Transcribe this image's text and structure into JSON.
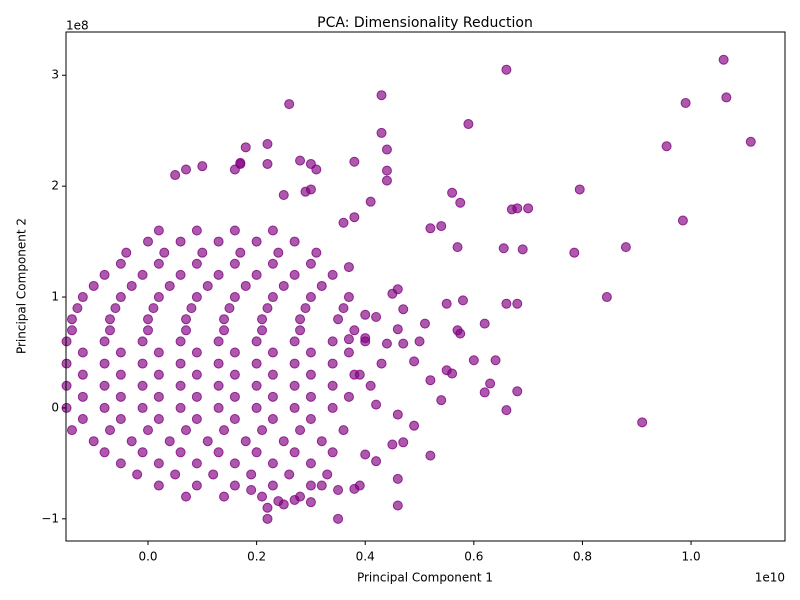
{
  "chart_data": {
    "type": "scatter",
    "title": "PCA: Dimensionality Reduction",
    "x_label": "Principal Component 1",
    "y_label": "Principal Component 2",
    "x_offset_text": "1e10",
    "y_offset_text": "1e8",
    "color": "#800080",
    "grid": false,
    "xlim": [
      -0.151,
      1.173
    ],
    "ylim": [
      -1.2,
      3.39
    ],
    "xticks": [
      {
        "value": 0,
        "label": "0.0"
      },
      {
        "value": 0.2,
        "label": "0.2"
      },
      {
        "value": 0.4,
        "label": "0.4"
      },
      {
        "value": 0.6,
        "label": "0.6"
      },
      {
        "value": 0.8,
        "label": "0.8"
      },
      {
        "value": 1.0,
        "label": "1.0"
      }
    ],
    "yticks": [
      {
        "value": -1,
        "label": "−1"
      },
      0,
      1,
      2,
      3
    ],
    "x": [
      1.06,
      1.065,
      0.99,
      1.11,
      0.955,
      0.985,
      0.795,
      0.785,
      0.88,
      0.845,
      0.91,
      0.66,
      0.59,
      0.43,
      0.26,
      0.43,
      0.44,
      0.44,
      0.44,
      0.575,
      0.56,
      0.52,
      0.54,
      0.57,
      0.655,
      0.69,
      0.67,
      0.7,
      0.68,
      0.66,
      0.68,
      0.58,
      0.55,
      0.62,
      0.6,
      0.64,
      0.63,
      0.62,
      0.68,
      0.66,
      0.57,
      0.575,
      0.55,
      0.56,
      0.54,
      0.52,
      0.52,
      0.5,
      0.51,
      0.49,
      0.49,
      0.47,
      0.46,
      0.45,
      0.46,
      0.47,
      0.46,
      0.46,
      0.46,
      0.45,
      0.47,
      0.44,
      0.43,
      0.42,
      0.42,
      0.42,
      0.41,
      0.4,
      0.4,
      0.39,
      0.4,
      0.39,
      0.38,
      0.38,
      0.37,
      0.36,
      0.37,
      0.35,
      0.35,
      0.38,
      0.3,
      0.28,
      0.31,
      0.29,
      0.3,
      0.22,
      0.22,
      0.18,
      0.17,
      0.17,
      0.16,
      0.05,
      0.1,
      0.07,
      0.25,
      0.32,
      0.3,
      0.27,
      0.25,
      0.22,
      0.22,
      0.24,
      0.19,
      0.02,
      0.09,
      0.16,
      0.23,
      0.0,
      0.06,
      0.13,
      0.2,
      0.27,
      -0.04,
      0.03,
      0.1,
      0.17,
      0.24,
      0.31,
      -0.05,
      0.02,
      0.09,
      0.16,
      0.23,
      0.3,
      -0.08,
      -0.01,
      0.06,
      0.13,
      0.2,
      0.27,
      0.34,
      -0.1,
      -0.03,
      0.04,
      0.11,
      0.18,
      0.25,
      0.32,
      -0.12,
      -0.05,
      0.02,
      0.09,
      0.16,
      0.23,
      0.3,
      0.37,
      -0.13,
      -0.06,
      0.01,
      0.08,
      0.15,
      0.22,
      0.29,
      0.36,
      -0.14,
      -0.07,
      0.0,
      0.07,
      0.14,
      0.21,
      0.28,
      0.35,
      -0.14,
      -0.07,
      0.0,
      0.07,
      0.14,
      0.21,
      0.28,
      0.38,
      -0.15,
      -0.08,
      -0.01,
      0.06,
      0.13,
      0.2,
      0.27,
      0.34,
      0.4,
      -0.12,
      -0.05,
      0.02,
      0.09,
      0.16,
      0.23,
      0.3,
      0.37,
      -0.15,
      -0.08,
      -0.01,
      0.06,
      0.13,
      0.2,
      0.27,
      0.34,
      -0.12,
      -0.05,
      0.02,
      0.09,
      0.16,
      0.23,
      0.3,
      0.38,
      -0.15,
      -0.08,
      -0.01,
      0.06,
      0.13,
      0.2,
      0.27,
      0.34,
      0.41,
      -0.12,
      -0.05,
      0.02,
      0.09,
      0.16,
      0.23,
      0.3,
      0.37,
      -0.15,
      -0.08,
      -0.01,
      0.06,
      0.13,
      0.2,
      0.27,
      0.34,
      -0.12,
      -0.05,
      0.02,
      0.09,
      0.16,
      0.23,
      0.3,
      -0.14,
      -0.07,
      0.0,
      0.07,
      0.14,
      0.21,
      0.28,
      0.36,
      -0.1,
      -0.03,
      0.04,
      0.11,
      0.18,
      0.25,
      0.32,
      -0.08,
      -0.01,
      0.06,
      0.13,
      0.2,
      0.27,
      0.34,
      -0.05,
      0.02,
      0.09,
      0.16,
      0.23,
      0.3,
      -0.02,
      0.05,
      0.12,
      0.19,
      0.26,
      0.33,
      0.02,
      0.09,
      0.16,
      0.23,
      0.3,
      0.07,
      0.14,
      0.21,
      0.28
    ],
    "values": [
      3.14,
      2.8,
      2.75,
      2.4,
      2.36,
      1.69,
      1.97,
      1.4,
      1.45,
      1.0,
      -0.13,
      3.05,
      2.56,
      2.82,
      2.74,
      2.48,
      2.33,
      2.14,
      2.05,
      1.85,
      1.94,
      1.62,
      1.64,
      1.45,
      1.44,
      1.43,
      1.79,
      1.8,
      1.8,
      0.94,
      0.94,
      0.97,
      0.94,
      0.76,
      0.43,
      0.43,
      0.22,
      0.14,
      0.15,
      -0.02,
      0.7,
      0.67,
      0.34,
      0.31,
      0.07,
      0.25,
      -0.43,
      0.6,
      0.76,
      0.42,
      -0.16,
      0.58,
      1.07,
      1.03,
      0.71,
      0.89,
      -0.88,
      -0.64,
      -0.06,
      -0.33,
      -0.31,
      0.58,
      0.4,
      0.82,
      0.03,
      -0.48,
      1.86,
      0.84,
      0.63,
      0.3,
      -0.42,
      -0.7,
      2.22,
      1.72,
      1.27,
      1.67,
      0.62,
      -1.0,
      -0.74,
      -0.73,
      2.2,
      2.23,
      2.15,
      1.95,
      1.97,
      2.38,
      2.2,
      2.35,
      2.21,
      2.2,
      2.15,
      2.1,
      2.18,
      2.15,
      1.92,
      -0.7,
      -0.85,
      -0.83,
      -0.87,
      -0.9,
      -1.0,
      -0.84,
      -0.74,
      1.6,
      1.6,
      1.6,
      1.6,
      1.5,
      1.5,
      1.5,
      1.5,
      1.5,
      1.4,
      1.4,
      1.4,
      1.4,
      1.4,
      1.4,
      1.3,
      1.3,
      1.3,
      1.3,
      1.3,
      1.3,
      1.2,
      1.2,
      1.2,
      1.2,
      1.2,
      1.2,
      1.2,
      1.1,
      1.1,
      1.1,
      1.1,
      1.1,
      1.1,
      1.1,
      1.0,
      1.0,
      1.0,
      1.0,
      1.0,
      1.0,
      1.0,
      1.0,
      0.9,
      0.9,
      0.9,
      0.9,
      0.9,
      0.9,
      0.9,
      0.9,
      0.8,
      0.8,
      0.8,
      0.8,
      0.8,
      0.8,
      0.8,
      0.8,
      0.7,
      0.7,
      0.7,
      0.7,
      0.7,
      0.7,
      0.7,
      0.7,
      0.6,
      0.6,
      0.6,
      0.6,
      0.6,
      0.6,
      0.6,
      0.6,
      0.6,
      0.5,
      0.5,
      0.5,
      0.5,
      0.5,
      0.5,
      0.5,
      0.5,
      0.4,
      0.4,
      0.4,
      0.4,
      0.4,
      0.4,
      0.4,
      0.4,
      0.3,
      0.3,
      0.3,
      0.3,
      0.3,
      0.3,
      0.3,
      0.3,
      0.2,
      0.2,
      0.2,
      0.2,
      0.2,
      0.2,
      0.2,
      0.2,
      0.2,
      0.1,
      0.1,
      0.1,
      0.1,
      0.1,
      0.1,
      0.1,
      0.1,
      0.0,
      0.0,
      0.0,
      0.0,
      0.0,
      0.0,
      0.0,
      0.0,
      -0.1,
      -0.1,
      -0.1,
      -0.1,
      -0.1,
      -0.1,
      -0.1,
      -0.2,
      -0.2,
      -0.2,
      -0.2,
      -0.2,
      -0.2,
      -0.2,
      -0.2,
      -0.3,
      -0.3,
      -0.3,
      -0.3,
      -0.3,
      -0.3,
      -0.3,
      -0.4,
      -0.4,
      -0.4,
      -0.4,
      -0.4,
      -0.4,
      -0.4,
      -0.5,
      -0.5,
      -0.5,
      -0.5,
      -0.5,
      -0.5,
      -0.6,
      -0.6,
      -0.6,
      -0.6,
      -0.6,
      -0.6,
      -0.7,
      -0.7,
      -0.7,
      -0.7,
      -0.7,
      -0.8,
      -0.8,
      -0.8,
      -0.8
    ]
  }
}
